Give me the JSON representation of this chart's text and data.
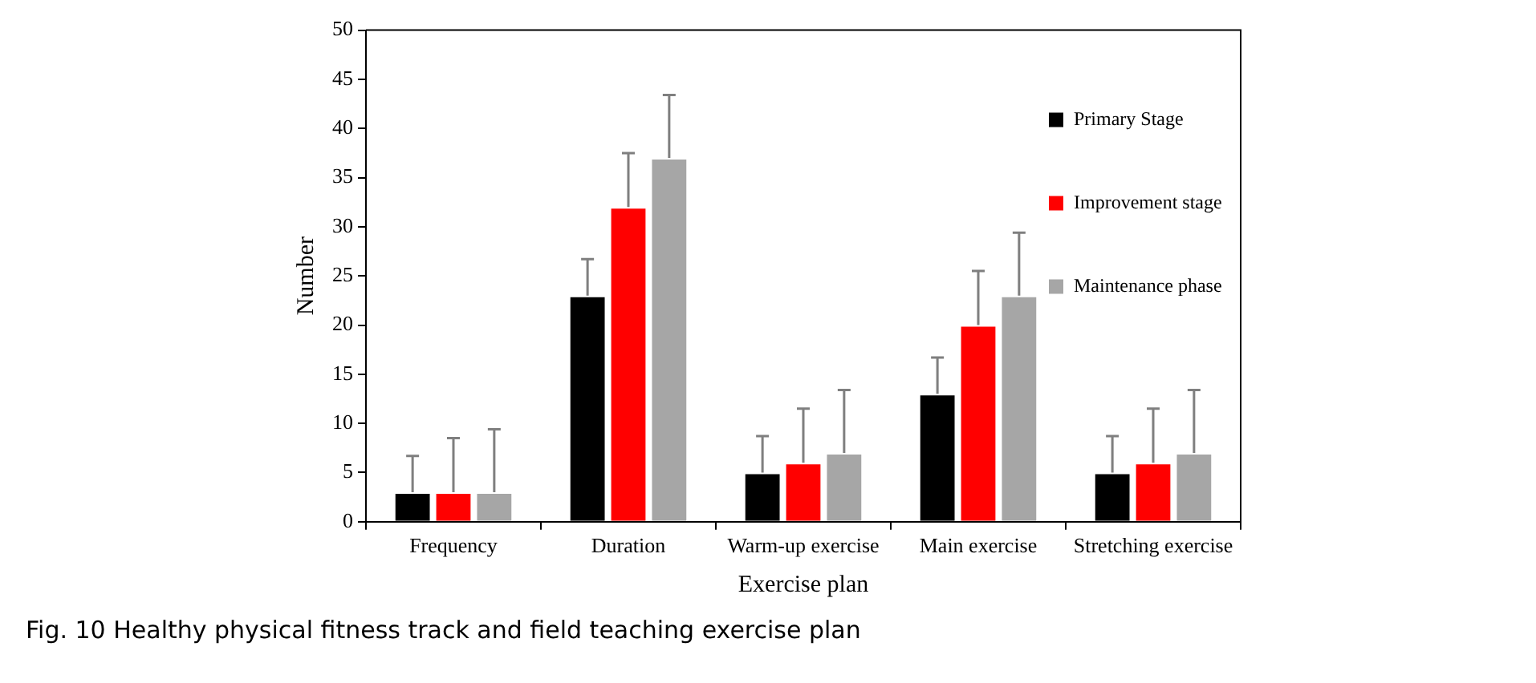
{
  "chart_data": {
    "type": "bar",
    "title": "Fig. 10  Healthy physical fitness track and field teaching exercise plan",
    "xlabel": "Exercise plan",
    "ylabel": "Number",
    "categories": [
      "Frequency",
      "Duration",
      "Warm-up exercise",
      "Main exercise",
      "Stretching exercise"
    ],
    "series": [
      {
        "name": "Primary Stage",
        "color": "#000000",
        "values": [
          3,
          23,
          5,
          13,
          5
        ],
        "errors": [
          [
            3,
            6.7
          ],
          [
            23,
            26.7
          ],
          [
            5,
            8.7
          ],
          [
            13,
            16.7
          ],
          [
            5,
            8.7
          ]
        ]
      },
      {
        "name": "Improvement stage",
        "color": "#ff0000",
        "values": [
          3,
          32,
          6,
          20,
          6
        ],
        "errors": [
          [
            3,
            8.5
          ],
          [
            32,
            37.5
          ],
          [
            6,
            11.5
          ],
          [
            20,
            25.5
          ],
          [
            6,
            11.5
          ]
        ]
      },
      {
        "name": "Maintenance phase",
        "color": "#a6a6a6",
        "values": [
          3,
          37,
          7,
          23,
          7
        ],
        "errors": [
          [
            3,
            9.4
          ],
          [
            37,
            43.4
          ],
          [
            7,
            13.4
          ],
          [
            23,
            29.4
          ],
          [
            7,
            13.4
          ]
        ]
      }
    ],
    "ylim": [
      0,
      50
    ],
    "yticks": [
      0,
      5,
      10,
      15,
      20,
      25,
      30,
      35,
      40,
      45,
      50
    ],
    "grid": false,
    "legend": "top right"
  }
}
